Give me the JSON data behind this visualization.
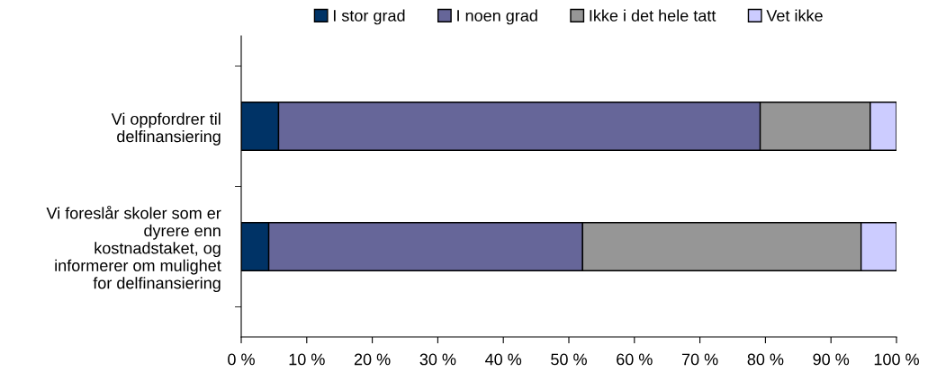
{
  "chart_data": {
    "type": "bar",
    "orientation": "horizontal",
    "stacked": true,
    "categories": [
      "Vi oppfordrer til\ndelfinansiering",
      "Vi foreslår skoler som er\ndyrere enn\nkostnadstaket, og\ninformerer om mulighet\nfor delfinansiering"
    ],
    "series": [
      {
        "name": "I stor grad",
        "color": "#003366",
        "values": [
          5.7,
          4.2
        ]
      },
      {
        "name": "I noen grad",
        "color": "#666699",
        "values": [
          73.5,
          47.9
        ]
      },
      {
        "name": "Ikke i det hele tatt",
        "color": "#969696",
        "values": [
          16.8,
          42.5
        ]
      },
      {
        "name": "Vet ikke",
        "color": "#ccccff",
        "values": [
          4.0,
          5.4
        ]
      }
    ],
    "xlim": [
      0,
      100
    ],
    "xticks": [
      {
        "value": 0,
        "label": "0 %"
      },
      {
        "value": 10,
        "label": "10 %"
      },
      {
        "value": 20,
        "label": "20 %"
      },
      {
        "value": 30,
        "label": "30 %"
      },
      {
        "value": 40,
        "label": "40 %"
      },
      {
        "value": 50,
        "label": "50 %"
      },
      {
        "value": 60,
        "label": "60 %"
      },
      {
        "value": 70,
        "label": "70 %"
      },
      {
        "value": 80,
        "label": "80 %"
      },
      {
        "value": 90,
        "label": "90 %"
      },
      {
        "value": 100,
        "label": "100 %"
      }
    ],
    "grid": false,
    "legend": "top"
  }
}
